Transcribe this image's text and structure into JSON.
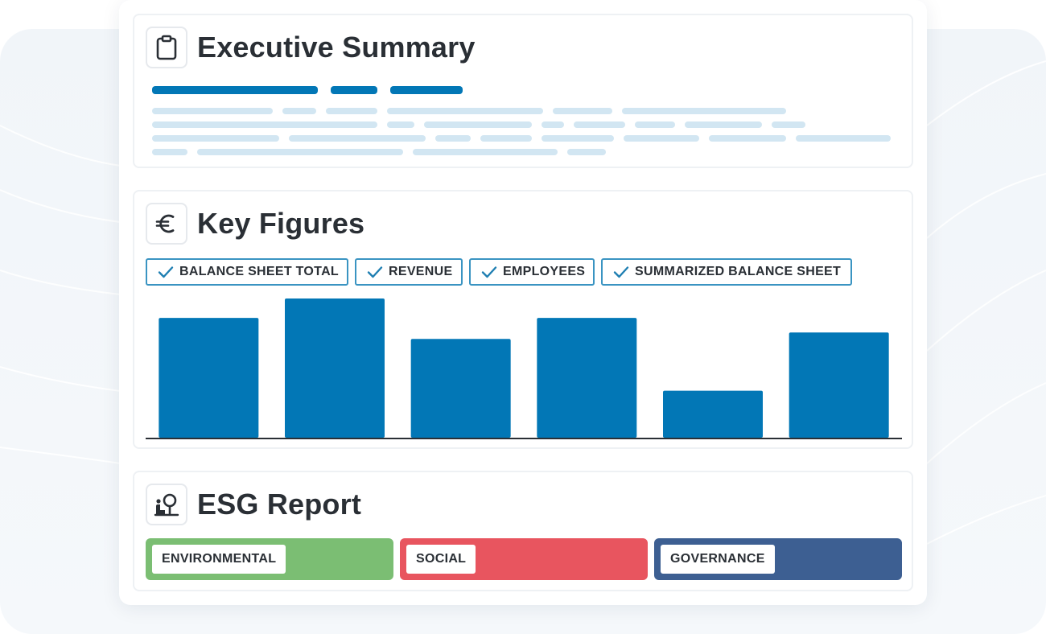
{
  "colors": {
    "accent": "#0277b6",
    "skeleton": "#d2e6f2",
    "environmental": "#7bbe73",
    "social": "#e8555f",
    "governance": "#3d5f92"
  },
  "sections": {
    "executive_summary": {
      "title": "Executive Summary",
      "icon": "clipboard-icon"
    },
    "key_figures": {
      "title": "Key Figures",
      "icon": "euro-icon",
      "tags": [
        {
          "label": "BALANCE SHEET TOTAL",
          "checked": true
        },
        {
          "label": "REVENUE",
          "checked": true
        },
        {
          "label": "EMPLOYEES",
          "checked": true
        },
        {
          "label": "SUMMARIZED BALANCE SHEET",
          "checked": true
        }
      ]
    },
    "esg_report": {
      "title": "ESG Report",
      "icon": "person-tree-icon",
      "categories": [
        {
          "label": "ENVIRONMENTAL"
        },
        {
          "label": "SOCIAL"
        },
        {
          "label": "GOVERNANCE"
        }
      ]
    }
  },
  "chart_data": {
    "type": "bar",
    "categories": [
      "",
      "",
      "",
      "",
      "",
      ""
    ],
    "values": [
      148,
      172,
      122,
      148,
      58,
      130
    ],
    "ylim": [
      0,
      172
    ],
    "title": "",
    "xlabel": "",
    "ylabel": "",
    "grid": false,
    "legend": "none"
  }
}
